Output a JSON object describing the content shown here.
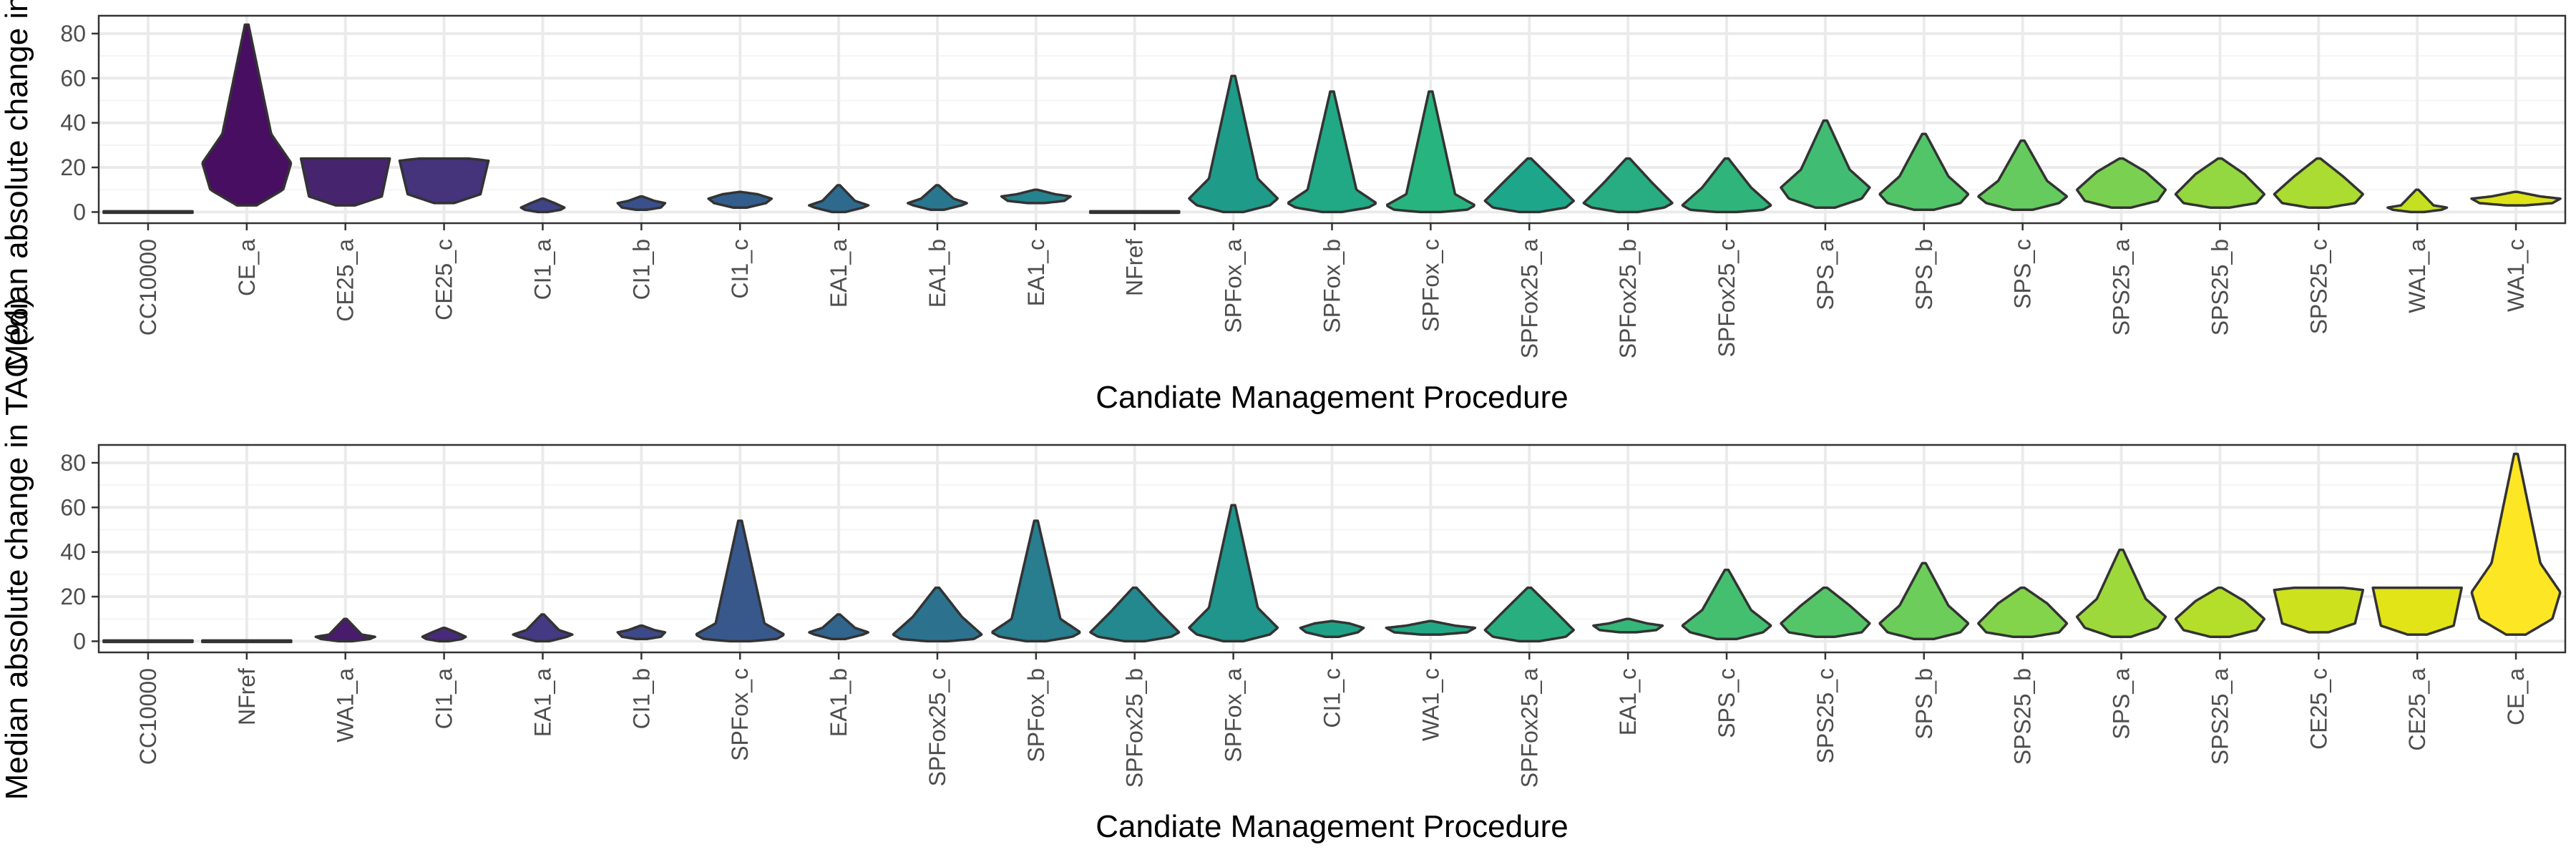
{
  "chart_data": [
    {
      "type": "violin",
      "xlabel": "Candiate Management Procedure",
      "ylabel": "Median absolute change in TAC (%)",
      "ylim": [
        -5,
        88
      ],
      "yticks": [
        0,
        20,
        40,
        60,
        80
      ],
      "grid": true,
      "colors": {
        "panel_border": "#333333",
        "grid_major": "#ebebeb",
        "grid_minor": "#f5f5f5",
        "outline": "#333333"
      },
      "violins": [
        {
          "label": "CC10000",
          "fill": "#440154",
          "min": 0,
          "max": 0,
          "q_low": 0,
          "mode": 0,
          "q_high": 0,
          "max_half_width": 0.45
        },
        {
          "label": "CE_a",
          "fill": "#470e61",
          "min": 3,
          "max": 84,
          "q_low": 10,
          "mode": 22,
          "q_high": 35,
          "max_half_width": 0.45
        },
        {
          "label": "CE25_a",
          "fill": "#46246e",
          "min": 3,
          "max": 24,
          "q_low": 7,
          "mode": 24,
          "q_high": 24,
          "max_half_width": 0.45
        },
        {
          "label": "CE25_c",
          "fill": "#45337c",
          "min": 4,
          "max": 24,
          "q_low": 8,
          "mode": 23,
          "q_high": 24,
          "max_half_width": 0.45
        },
        {
          "label": "CI1_a",
          "fill": "#3f4487",
          "min": 0,
          "max": 6,
          "q_low": 1,
          "mode": 2,
          "q_high": 4,
          "max_half_width": 0.22
        },
        {
          "label": "CI1_b",
          "fill": "#39508c",
          "min": 1,
          "max": 7,
          "q_low": 2,
          "mode": 4,
          "q_high": 5,
          "max_half_width": 0.24
        },
        {
          "label": "CI1_c",
          "fill": "#325d8d",
          "min": 2,
          "max": 9,
          "q_low": 4,
          "mode": 6,
          "q_high": 8,
          "max_half_width": 0.32
        },
        {
          "label": "EA1_a",
          "fill": "#2d6a8e",
          "min": 0,
          "max": 12,
          "q_low": 2,
          "mode": 3,
          "q_high": 5,
          "max_half_width": 0.3
        },
        {
          "label": "EA1_b",
          "fill": "#29778e",
          "min": 1,
          "max": 12,
          "q_low": 3,
          "mode": 4,
          "q_high": 6,
          "max_half_width": 0.3
        },
        {
          "label": "EA1_c",
          "fill": "#25838e",
          "min": 4,
          "max": 10,
          "q_low": 5,
          "mode": 7,
          "q_high": 8,
          "max_half_width": 0.35
        },
        {
          "label": "NFref",
          "fill": "#21908d",
          "min": 0,
          "max": 0,
          "q_low": 0,
          "mode": 0,
          "q_high": 0,
          "max_half_width": 0.45
        },
        {
          "label": "SPFox_a",
          "fill": "#1e9c89",
          "min": 0,
          "max": 61,
          "q_low": 3,
          "mode": 6,
          "q_high": 15,
          "max_half_width": 0.45
        },
        {
          "label": "SPFox_b",
          "fill": "#21a885",
          "min": 0,
          "max": 54,
          "q_low": 2,
          "mode": 4,
          "q_high": 10,
          "max_half_width": 0.45
        },
        {
          "label": "SPFox_c",
          "fill": "#28b47f",
          "min": 0,
          "max": 54,
          "q_low": 1,
          "mode": 3,
          "q_high": 8,
          "max_half_width": 0.45
        },
        {
          "label": "SPFox25_a",
          "fill": "#1ea68a",
          "min": 0,
          "max": 24,
          "q_low": 2,
          "mode": 5,
          "q_high": 14,
          "max_half_width": 0.45
        },
        {
          "label": "SPFox25_b",
          "fill": "#27ad81",
          "min": 0,
          "max": 24,
          "q_low": 2,
          "mode": 4,
          "q_high": 13,
          "max_half_width": 0.45
        },
        {
          "label": "SPFox25_c",
          "fill": "#2fb47c",
          "min": 0,
          "max": 24,
          "q_low": 1,
          "mode": 3,
          "q_high": 11,
          "max_half_width": 0.45
        },
        {
          "label": "SPS_a",
          "fill": "#40bd72",
          "min": 2,
          "max": 41,
          "q_low": 6,
          "mode": 11,
          "q_high": 19,
          "max_half_width": 0.45
        },
        {
          "label": "SPS_b",
          "fill": "#52c569",
          "min": 1,
          "max": 35,
          "q_low": 4,
          "mode": 8,
          "q_high": 16,
          "max_half_width": 0.45
        },
        {
          "label": "SPS_c",
          "fill": "#65cb5e",
          "min": 1,
          "max": 32,
          "q_low": 4,
          "mode": 7,
          "q_high": 14,
          "max_half_width": 0.45
        },
        {
          "label": "SPS25_a",
          "fill": "#7ad151",
          "min": 2,
          "max": 24,
          "q_low": 5,
          "mode": 10,
          "q_high": 18,
          "max_half_width": 0.45
        },
        {
          "label": "SPS25_b",
          "fill": "#93d741",
          "min": 2,
          "max": 24,
          "q_low": 4,
          "mode": 8,
          "q_high": 17,
          "max_half_width": 0.45
        },
        {
          "label": "SPS25_c",
          "fill": "#aadc32",
          "min": 2,
          "max": 24,
          "q_low": 4,
          "mode": 8,
          "q_high": 16,
          "max_half_width": 0.45
        },
        {
          "label": "WA1_a",
          "fill": "#c5e021",
          "min": 0,
          "max": 10,
          "q_low": 1,
          "mode": 2,
          "q_high": 3,
          "max_half_width": 0.3
        },
        {
          "label": "WA1_c",
          "fill": "#dde318",
          "min": 3,
          "max": 9,
          "q_low": 4,
          "mode": 6,
          "q_high": 7,
          "max_half_width": 0.45
        }
      ]
    },
    {
      "type": "violin",
      "xlabel": "Candiate Management Procedure",
      "ylabel": "Median absolute change in TAC (%)",
      "ylim": [
        -5,
        88
      ],
      "yticks": [
        0,
        20,
        40,
        60,
        80
      ],
      "grid": true,
      "colors": {
        "panel_border": "#333333",
        "grid_major": "#ebebeb",
        "grid_minor": "#f5f5f5",
        "outline": "#333333"
      },
      "violins": [
        {
          "label": "CC10000",
          "fill": "#440154",
          "min": 0,
          "max": 0,
          "q_low": 0,
          "mode": 0,
          "q_high": 0,
          "max_half_width": 0.45
        },
        {
          "label": "NFref",
          "fill": "#470e61",
          "min": 0,
          "max": 0,
          "q_low": 0,
          "mode": 0,
          "q_high": 0,
          "max_half_width": 0.45
        },
        {
          "label": "WA1_a",
          "fill": "#481b6d",
          "min": 0,
          "max": 10,
          "q_low": 1,
          "mode": 2,
          "q_high": 3,
          "max_half_width": 0.3
        },
        {
          "label": "CI1_a",
          "fill": "#472a7a",
          "min": 0,
          "max": 6,
          "q_low": 1,
          "mode": 2,
          "q_high": 4,
          "max_half_width": 0.22
        },
        {
          "label": "EA1_a",
          "fill": "#433a83",
          "min": 0,
          "max": 12,
          "q_low": 2,
          "mode": 3,
          "q_high": 5,
          "max_half_width": 0.3
        },
        {
          "label": "CI1_b",
          "fill": "#3e4989",
          "min": 1,
          "max": 7,
          "q_low": 2,
          "mode": 4,
          "q_high": 5,
          "max_half_width": 0.24
        },
        {
          "label": "SPFox_c",
          "fill": "#38588c",
          "min": 0,
          "max": 54,
          "q_low": 1,
          "mode": 3,
          "q_high": 8,
          "max_half_width": 0.45
        },
        {
          "label": "EA1_b",
          "fill": "#32658e",
          "min": 1,
          "max": 12,
          "q_low": 3,
          "mode": 4,
          "q_high": 6,
          "max_half_width": 0.3
        },
        {
          "label": "SPFox25_c",
          "fill": "#2c728e",
          "min": 0,
          "max": 24,
          "q_low": 1,
          "mode": 3,
          "q_high": 11,
          "max_half_width": 0.45
        },
        {
          "label": "SPFox_b",
          "fill": "#287d8e",
          "min": 0,
          "max": 54,
          "q_low": 2,
          "mode": 4,
          "q_high": 10,
          "max_half_width": 0.45
        },
        {
          "label": "SPFox25_b",
          "fill": "#23898e",
          "min": 0,
          "max": 24,
          "q_low": 2,
          "mode": 4,
          "q_high": 13,
          "max_half_width": 0.45
        },
        {
          "label": "SPFox_a",
          "fill": "#1f958b",
          "min": 0,
          "max": 61,
          "q_low": 3,
          "mode": 6,
          "q_high": 15,
          "max_half_width": 0.45
        },
        {
          "label": "CI1_c",
          "fill": "#1fa187",
          "min": 2,
          "max": 9,
          "q_low": 4,
          "mode": 6,
          "q_high": 8,
          "max_half_width": 0.32
        },
        {
          "label": "WA1_c",
          "fill": "#22a884",
          "min": 3,
          "max": 9,
          "q_low": 4,
          "mode": 6,
          "q_high": 7,
          "max_half_width": 0.45
        },
        {
          "label": "SPFox25_a",
          "fill": "#29af7f",
          "min": 0,
          "max": 24,
          "q_low": 2,
          "mode": 5,
          "q_high": 14,
          "max_half_width": 0.45
        },
        {
          "label": "EA1_c",
          "fill": "#35b779",
          "min": 4,
          "max": 10,
          "q_low": 5,
          "mode": 7,
          "q_high": 8,
          "max_half_width": 0.35
        },
        {
          "label": "SPS_c",
          "fill": "#44bf70",
          "min": 1,
          "max": 32,
          "q_low": 4,
          "mode": 7,
          "q_high": 14,
          "max_half_width": 0.45
        },
        {
          "label": "SPS25_c",
          "fill": "#55c667",
          "min": 2,
          "max": 24,
          "q_low": 4,
          "mode": 8,
          "q_high": 16,
          "max_half_width": 0.45
        },
        {
          "label": "SPS_b",
          "fill": "#6ccd5a",
          "min": 1,
          "max": 35,
          "q_low": 4,
          "mode": 8,
          "q_high": 16,
          "max_half_width": 0.45
        },
        {
          "label": "SPS25_b",
          "fill": "#84d44b",
          "min": 2,
          "max": 24,
          "q_low": 4,
          "mode": 8,
          "q_high": 17,
          "max_half_width": 0.45
        },
        {
          "label": "SPS_a",
          "fill": "#9dd93b",
          "min": 2,
          "max": 41,
          "q_low": 6,
          "mode": 11,
          "q_high": 19,
          "max_half_width": 0.45
        },
        {
          "label": "SPS25_a",
          "fill": "#b5de2b",
          "min": 2,
          "max": 24,
          "q_low": 5,
          "mode": 10,
          "q_high": 18,
          "max_half_width": 0.45
        },
        {
          "label": "CE25_c",
          "fill": "#cde11d",
          "min": 4,
          "max": 24,
          "q_low": 8,
          "mode": 23,
          "q_high": 24,
          "max_half_width": 0.45
        },
        {
          "label": "CE25_a",
          "fill": "#e2e418",
          "min": 3,
          "max": 24,
          "q_low": 7,
          "mode": 24,
          "q_high": 24,
          "max_half_width": 0.45
        },
        {
          "label": "CE_a",
          "fill": "#fde725",
          "min": 3,
          "max": 84,
          "q_low": 10,
          "mode": 22,
          "q_high": 35,
          "max_half_width": 0.45
        }
      ]
    }
  ]
}
